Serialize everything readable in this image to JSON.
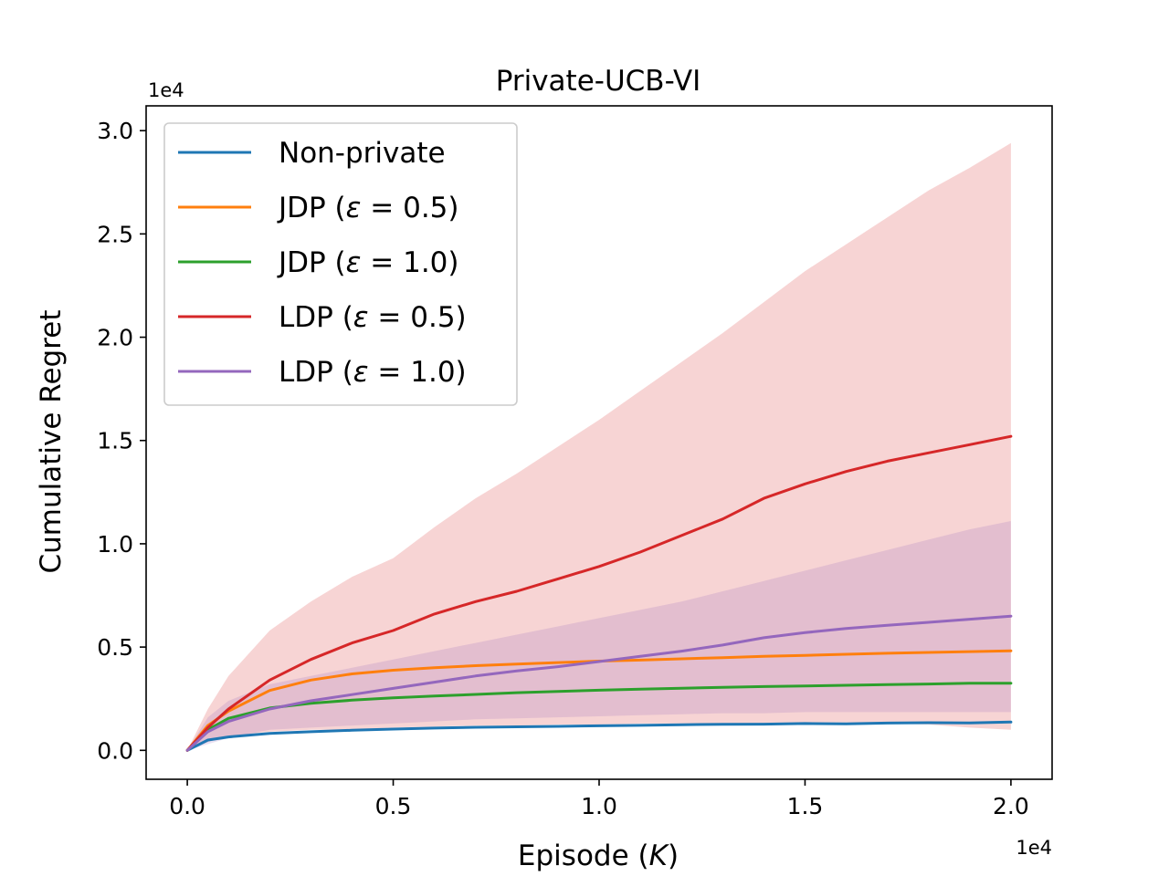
{
  "chart_data": {
    "type": "line",
    "title": "Private-UCB-VI",
    "xlabel": "Episode (K)",
    "ylabel": "Cumulative Regret",
    "x_offset_label": "1e4",
    "y_offset_label": "1e4",
    "xlim": [
      -0.1,
      2.1
    ],
    "ylim": [
      -0.14,
      3.12
    ],
    "x_ticks": [
      0.0,
      0.5,
      1.0,
      1.5,
      2.0
    ],
    "x_tick_labels": [
      "0.0",
      "0.5",
      "1.0",
      "1.5",
      "2.0"
    ],
    "y_ticks": [
      0.0,
      0.5,
      1.0,
      1.5,
      2.0,
      2.5,
      3.0
    ],
    "y_tick_labels": [
      "0.0",
      "0.5",
      "1.0",
      "1.5",
      "2.0",
      "2.5",
      "3.0"
    ],
    "grid": false,
    "legend_position": "upper-left",
    "x": [
      0.0,
      0.05,
      0.1,
      0.2,
      0.3,
      0.4,
      0.5,
      0.6,
      0.7,
      0.8,
      0.9,
      1.0,
      1.1,
      1.2,
      1.3,
      1.4,
      1.5,
      1.6,
      1.7,
      1.8,
      1.9,
      2.0
    ],
    "series": [
      {
        "name": "Non-private",
        "legend_label": "Non-private",
        "color": "#1f77b4",
        "values": [
          0.0,
          0.05,
          0.065,
          0.082,
          0.09,
          0.097,
          0.103,
          0.108,
          0.112,
          0.114,
          0.116,
          0.119,
          0.121,
          0.124,
          0.126,
          0.127,
          0.13,
          0.128,
          0.132,
          0.134,
          0.133,
          0.137
        ]
      },
      {
        "name": "JDP (ε=0.5)",
        "legend_label": "JDP (ε = 0.5)",
        "color": "#ff7f0e",
        "values": [
          0.0,
          0.12,
          0.19,
          0.29,
          0.34,
          0.37,
          0.388,
          0.4,
          0.41,
          0.418,
          0.425,
          0.432,
          0.437,
          0.443,
          0.449,
          0.455,
          0.46,
          0.465,
          0.47,
          0.474,
          0.478,
          0.482
        ]
      },
      {
        "name": "JDP (ε=1.0)",
        "legend_label": "JDP (ε = 1.0)",
        "color": "#2ca02c",
        "values": [
          0.0,
          0.1,
          0.155,
          0.205,
          0.228,
          0.243,
          0.254,
          0.263,
          0.271,
          0.279,
          0.285,
          0.291,
          0.296,
          0.301,
          0.305,
          0.309,
          0.312,
          0.315,
          0.318,
          0.321,
          0.325,
          0.325
        ]
      },
      {
        "name": "LDP (ε=0.5)",
        "legend_label": "LDP (ε = 0.5)",
        "color": "#d62728",
        "values": [
          0.0,
          0.11,
          0.2,
          0.34,
          0.44,
          0.52,
          0.58,
          0.66,
          0.72,
          0.77,
          0.83,
          0.89,
          0.96,
          1.04,
          1.12,
          1.22,
          1.29,
          1.35,
          1.4,
          1.44,
          1.48,
          1.52
        ]
      },
      {
        "name": "LDP (ε=1.0)",
        "legend_label": "LDP (ε = 1.0)",
        "color": "#9467bd",
        "values": [
          0.0,
          0.09,
          0.14,
          0.2,
          0.24,
          0.27,
          0.3,
          0.33,
          0.36,
          0.385,
          0.405,
          0.43,
          0.455,
          0.48,
          0.51,
          0.545,
          0.57,
          0.59,
          0.605,
          0.62,
          0.635,
          0.65
        ]
      }
    ],
    "bands": [
      {
        "name": "LDP (ε=0.5) spread",
        "color": "#d62728",
        "opacity": 0.2,
        "upper": [
          0.0,
          0.2,
          0.36,
          0.58,
          0.72,
          0.84,
          0.93,
          1.08,
          1.22,
          1.34,
          1.47,
          1.6,
          1.74,
          1.88,
          2.02,
          2.17,
          2.32,
          2.45,
          2.58,
          2.71,
          2.82,
          2.94
        ],
        "lower": [
          0.0,
          0.04,
          0.07,
          0.09,
          0.1,
          0.1,
          0.11,
          0.115,
          0.12,
          0.12,
          0.125,
          0.125,
          0.13,
          0.13,
          0.13,
          0.13,
          0.135,
          0.135,
          0.13,
          0.125,
          0.11,
          0.1
        ]
      },
      {
        "name": "LDP (ε=1.0) spread",
        "color": "#9467bd",
        "opacity": 0.2,
        "upper": [
          0.0,
          0.16,
          0.24,
          0.32,
          0.36,
          0.4,
          0.44,
          0.48,
          0.52,
          0.56,
          0.6,
          0.64,
          0.68,
          0.72,
          0.77,
          0.82,
          0.87,
          0.92,
          0.97,
          1.02,
          1.07,
          1.11
        ],
        "lower": [
          0.0,
          0.03,
          0.06,
          0.1,
          0.11,
          0.12,
          0.13,
          0.14,
          0.15,
          0.155,
          0.16,
          0.165,
          0.17,
          0.175,
          0.18,
          0.18,
          0.185,
          0.185,
          0.185,
          0.185,
          0.185,
          0.185
        ]
      }
    ]
  }
}
